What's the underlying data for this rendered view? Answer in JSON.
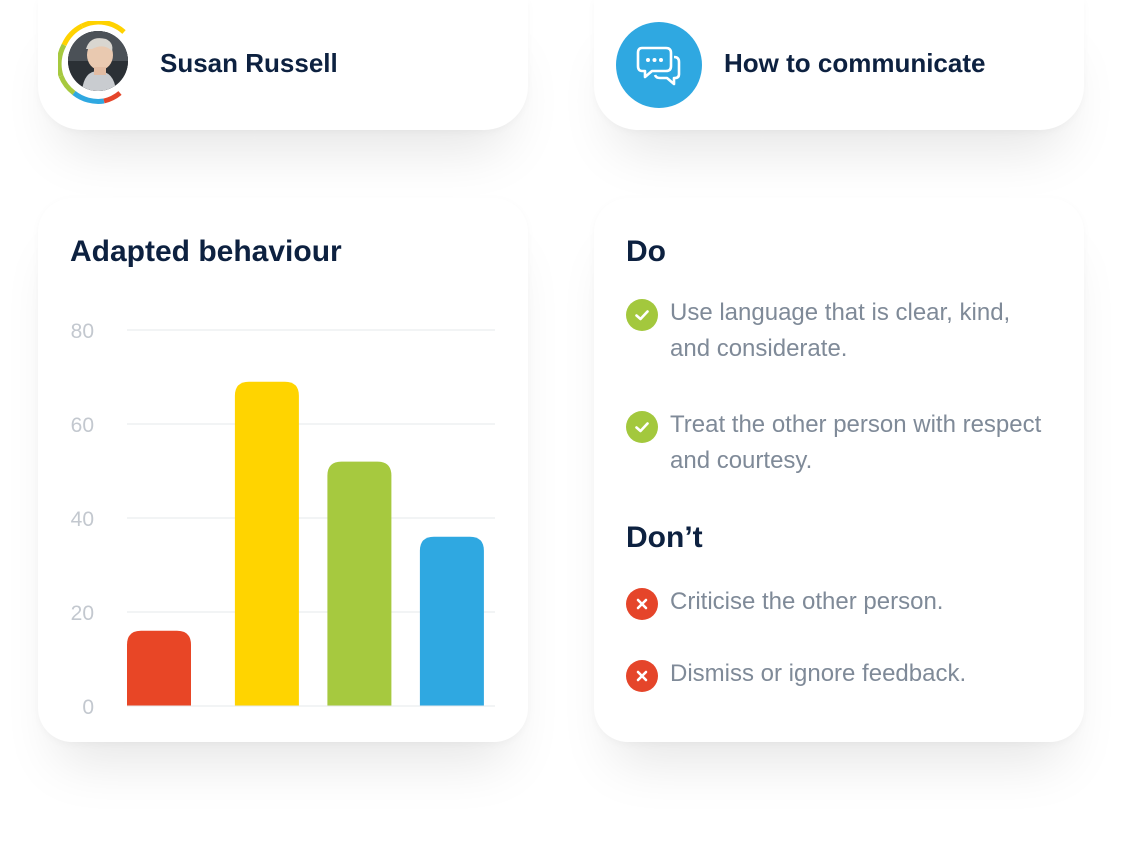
{
  "profile": {
    "name": "Susan Russell",
    "ring_colors": [
      "#ffd200",
      "#a6c93f",
      "#2fa8e1",
      "#e5452a"
    ]
  },
  "communicate": {
    "title": "How to communicate",
    "icon": "chat-bubbles-icon",
    "icon_color": "#2fa8e1"
  },
  "chart_section": {
    "title": "Adapted behaviour"
  },
  "chart_data": {
    "type": "bar",
    "title": "Adapted behaviour",
    "categories": [
      "",
      "",
      "",
      ""
    ],
    "values": [
      16,
      69,
      52,
      36
    ],
    "colors": [
      "#e84626",
      "#ffd400",
      "#a6c93f",
      "#2fa8e1"
    ],
    "yticks": [
      0,
      20,
      40,
      60,
      80
    ],
    "ylim": [
      0,
      80
    ],
    "grid": true,
    "xlabel": "",
    "ylabel": ""
  },
  "do_section": {
    "title": "Do",
    "items": [
      "Use language that is clear, kind, and considerate.",
      "Treat the other person with respect and courtesy."
    ]
  },
  "dont_section": {
    "title": "Don’t",
    "items": [
      "Criticise the other person.",
      "Dismiss or ignore feedback."
    ]
  },
  "colors": {
    "heading": "#0d2140",
    "body_text": "#7f8a98",
    "do_badge": "#a3c83d",
    "dont_badge": "#e5452a"
  }
}
